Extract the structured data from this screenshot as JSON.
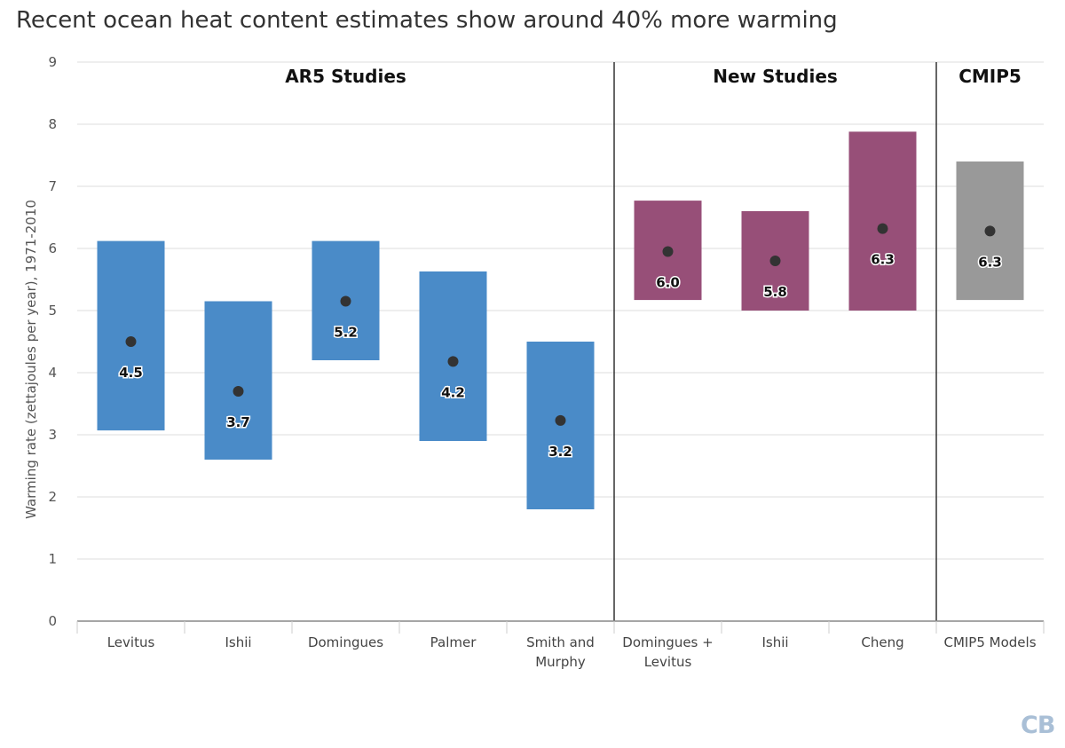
{
  "title": "Recent ocean heat content estimates show around 40% more warming",
  "brand_text": "CB",
  "colors": {
    "ar5": "#4a8bc8",
    "new": "#974f78",
    "cmip": "#999999",
    "dot": "#333333",
    "grid": "#dddddd",
    "divider": "#333333"
  },
  "chart_data": {
    "type": "bar",
    "title": "Recent ocean heat content estimates show around 40% more warming",
    "ylabel": "Warming rate (zettajoules per year), 1971-2010",
    "xlabel": "",
    "ylim": [
      0,
      9
    ],
    "yticks": [
      0,
      1,
      2,
      3,
      4,
      5,
      6,
      7,
      8,
      9
    ],
    "grid": true,
    "groups": [
      {
        "name": "AR5 Studies",
        "start": 0,
        "end": 4,
        "color_key": "ar5"
      },
      {
        "name": "New Studies",
        "start": 5,
        "end": 7,
        "color_key": "new"
      },
      {
        "name": "CMIP5",
        "start": 8,
        "end": 8,
        "color_key": "cmip"
      }
    ],
    "categories": [
      [
        "Levitus"
      ],
      [
        "Ishii"
      ],
      [
        "Domingues"
      ],
      [
        "Palmer"
      ],
      [
        "Smith and",
        "Murphy"
      ],
      [
        "Domingues +",
        "Levitus"
      ],
      [
        "Ishii"
      ],
      [
        "Cheng"
      ],
      [
        "CMIP5 Models"
      ]
    ],
    "low": [
      3.07,
      2.6,
      4.2,
      2.9,
      1.8,
      5.17,
      5.0,
      5.0,
      5.17
    ],
    "high": [
      6.12,
      5.15,
      6.12,
      5.63,
      4.5,
      6.77,
      6.6,
      7.88,
      7.4
    ],
    "values": [
      4.5,
      3.7,
      5.15,
      4.18,
      3.23,
      5.95,
      5.8,
      6.32,
      6.28
    ],
    "value_labels": [
      "4.5",
      "3.7",
      "5.2",
      "4.2",
      "3.2",
      "6.0",
      "5.8",
      "6.3",
      "6.3"
    ]
  }
}
